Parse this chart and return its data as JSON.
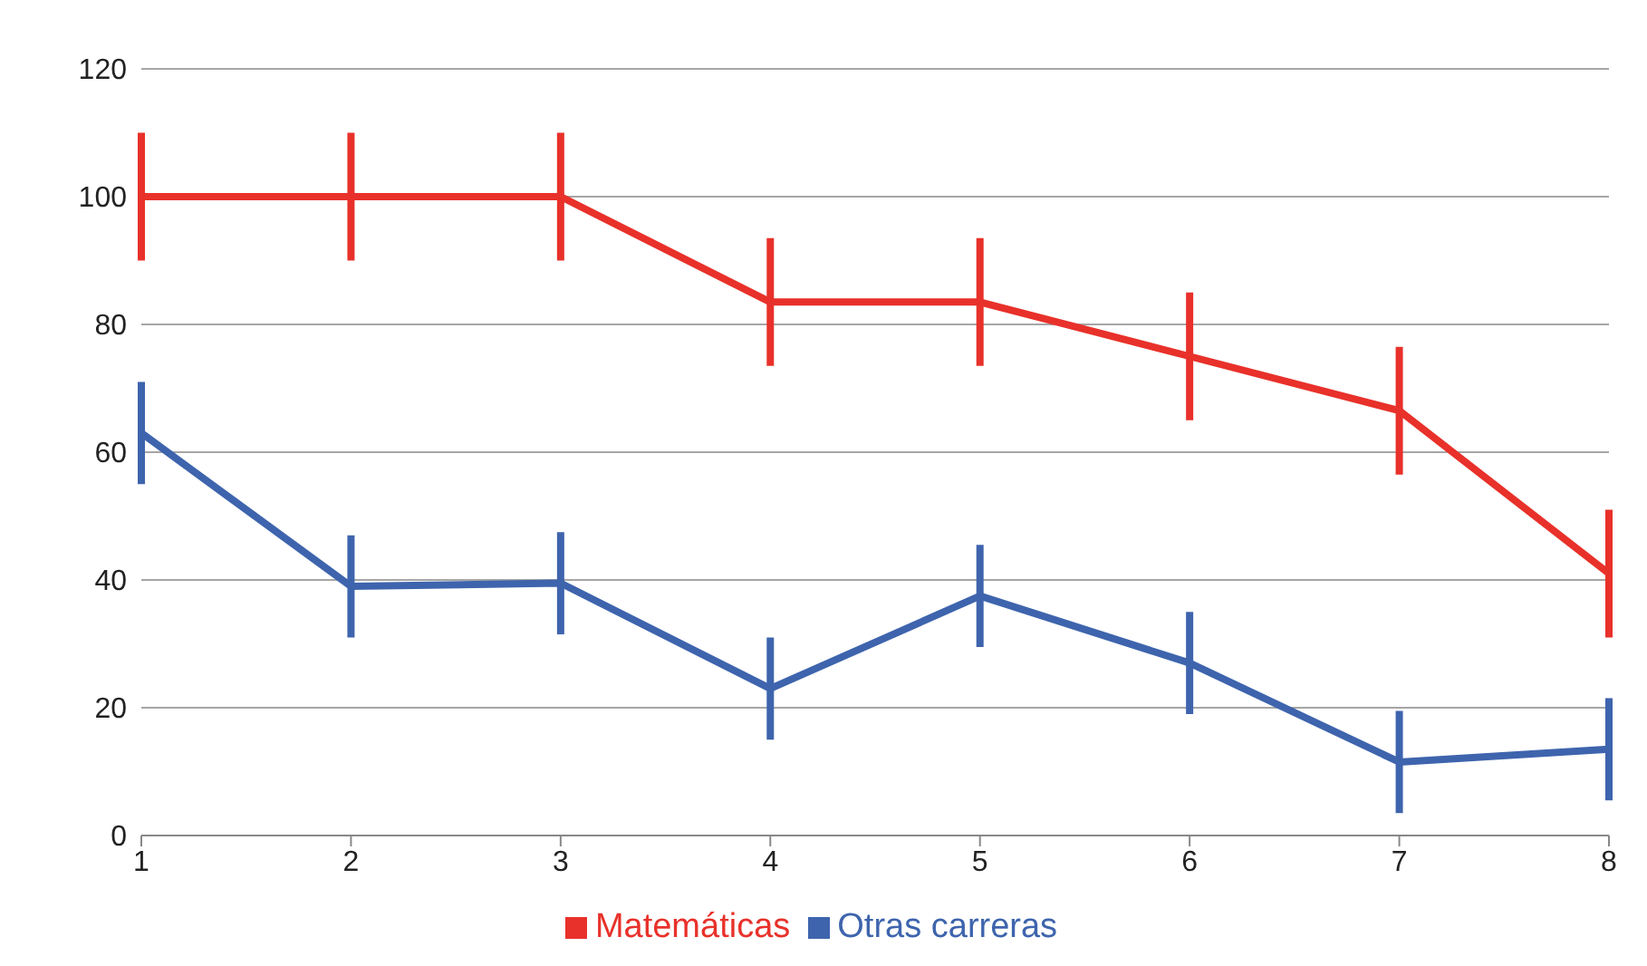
{
  "chart_data": {
    "type": "line",
    "categories": [
      "1",
      "2",
      "3",
      "4",
      "5",
      "6",
      "7",
      "8"
    ],
    "series": [
      {
        "name": "Matemáticas",
        "color": "#e8312a",
        "values": [
          100,
          100,
          100,
          83.5,
          83.5,
          75,
          66.5,
          41
        ],
        "errors": [
          10,
          10,
          10,
          10,
          10,
          10,
          10,
          10
        ]
      },
      {
        "name": "Otras carreras",
        "color": "#3e64ad",
        "values": [
          63,
          39,
          39.5,
          23,
          37.5,
          27,
          11.5,
          13.5
        ],
        "errors": [
          8,
          8,
          8,
          8,
          8,
          8,
          8,
          8
        ]
      }
    ],
    "ylim": [
      0,
      120
    ],
    "yticks": [
      0,
      20,
      40,
      60,
      80,
      100,
      120
    ],
    "grid": "y",
    "legend": "bottom",
    "marker": "none",
    "line_style": "solid"
  }
}
